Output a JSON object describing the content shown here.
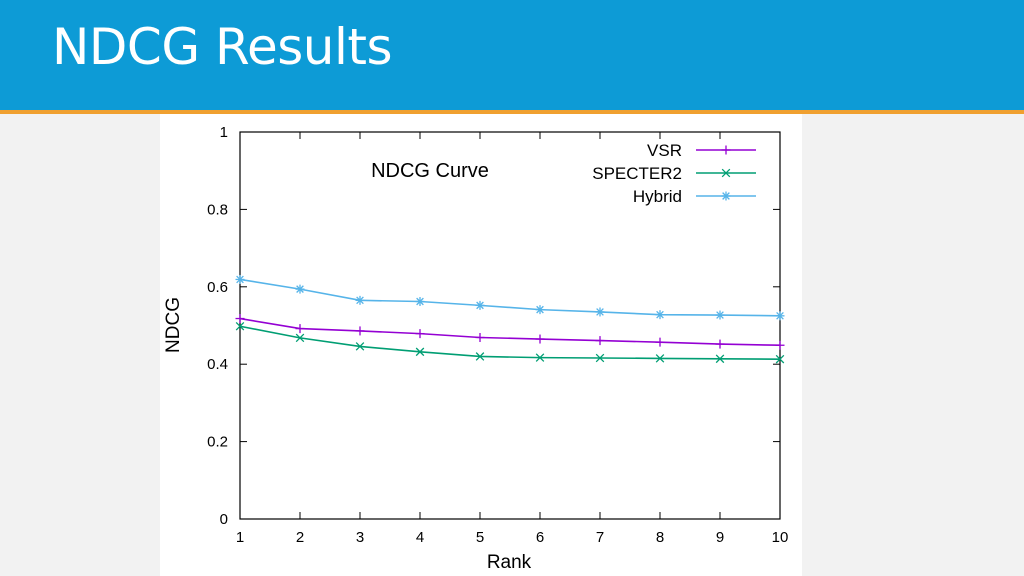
{
  "slide": {
    "title": "NDCG Results"
  },
  "colors": {
    "header_bg": "#0d9bd6",
    "header_rule": "#f0a030",
    "vsr": "#9400d3",
    "specter2": "#009e73",
    "hybrid": "#56b4e9"
  },
  "chart_data": {
    "type": "line",
    "title": "NDCG Curve",
    "xlabel": "Rank",
    "ylabel": "NDCG",
    "xlim": [
      1,
      10
    ],
    "ylim": [
      0,
      1
    ],
    "x": [
      1,
      2,
      3,
      4,
      5,
      6,
      7,
      8,
      9,
      10
    ],
    "xticks": [
      "1",
      "2",
      "3",
      "4",
      "5",
      "6",
      "7",
      "8",
      "9",
      "10"
    ],
    "yticks": [
      "0",
      "0.2",
      "0.4",
      "0.6",
      "0.8",
      "1"
    ],
    "ytick_values": [
      0,
      0.2,
      0.4,
      0.6,
      0.8,
      1
    ],
    "grid": false,
    "legend_position": "top-right",
    "series": [
      {
        "name": "VSR",
        "marker": "plus",
        "color": "#9400d3",
        "values": [
          0.518,
          0.492,
          0.486,
          0.479,
          0.469,
          0.465,
          0.461,
          0.457,
          0.452,
          0.449
        ]
      },
      {
        "name": "SPECTER2",
        "marker": "cross",
        "color": "#009e73",
        "values": [
          0.498,
          0.468,
          0.446,
          0.432,
          0.42,
          0.417,
          0.416,
          0.415,
          0.414,
          0.413
        ]
      },
      {
        "name": "Hybrid",
        "marker": "star",
        "color": "#56b4e9",
        "values": [
          0.619,
          0.594,
          0.565,
          0.562,
          0.552,
          0.541,
          0.535,
          0.528,
          0.527,
          0.525
        ]
      }
    ]
  }
}
